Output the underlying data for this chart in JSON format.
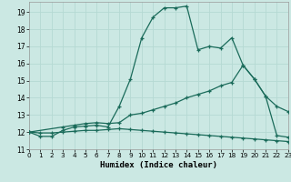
{
  "xlabel": "Humidex (Indice chaleur)",
  "bg_color": "#cbe8e3",
  "grid_color": "#b5d9d3",
  "line_color": "#1a6b5a",
  "xlim": [
    0,
    23
  ],
  "ylim": [
    11,
    19.6
  ],
  "xticks": [
    0,
    1,
    2,
    3,
    4,
    5,
    6,
    7,
    8,
    9,
    10,
    11,
    12,
    13,
    14,
    15,
    16,
    17,
    18,
    19,
    20,
    21,
    22,
    23
  ],
  "yticks": [
    11,
    12,
    13,
    14,
    15,
    16,
    17,
    18,
    19
  ],
  "line1_x": [
    0,
    1,
    2,
    3,
    4,
    5,
    6,
    7,
    8,
    9,
    10,
    11,
    12,
    13,
    14,
    15,
    16,
    17,
    18,
    19,
    20,
    21,
    22,
    23
  ],
  "line1_y": [
    12.0,
    11.75,
    11.75,
    12.1,
    12.3,
    12.35,
    12.4,
    12.3,
    13.5,
    15.1,
    17.5,
    18.7,
    19.25,
    19.25,
    19.35,
    16.8,
    17.0,
    16.9,
    17.5,
    15.9,
    15.1,
    14.1,
    11.8,
    11.7
  ],
  "line2_x": [
    0,
    3,
    4,
    5,
    6,
    7,
    8,
    9,
    10,
    11,
    12,
    13,
    14,
    15,
    16,
    17,
    18,
    19,
    20,
    21,
    22,
    23
  ],
  "line2_y": [
    12.0,
    12.3,
    12.4,
    12.5,
    12.55,
    12.5,
    12.55,
    13.0,
    13.1,
    13.3,
    13.5,
    13.7,
    14.0,
    14.2,
    14.4,
    14.7,
    14.9,
    15.9,
    15.1,
    14.1,
    13.5,
    13.2
  ],
  "line3_x": [
    0,
    1,
    2,
    3,
    4,
    5,
    6,
    7,
    8,
    9,
    10,
    11,
    12,
    13,
    14,
    15,
    16,
    17,
    18,
    19,
    20,
    21,
    22,
    23
  ],
  "line3_y": [
    12.0,
    11.95,
    11.95,
    12.0,
    12.05,
    12.1,
    12.1,
    12.15,
    12.2,
    12.15,
    12.1,
    12.05,
    12.0,
    11.95,
    11.9,
    11.85,
    11.8,
    11.75,
    11.7,
    11.65,
    11.6,
    11.55,
    11.5,
    11.45
  ]
}
